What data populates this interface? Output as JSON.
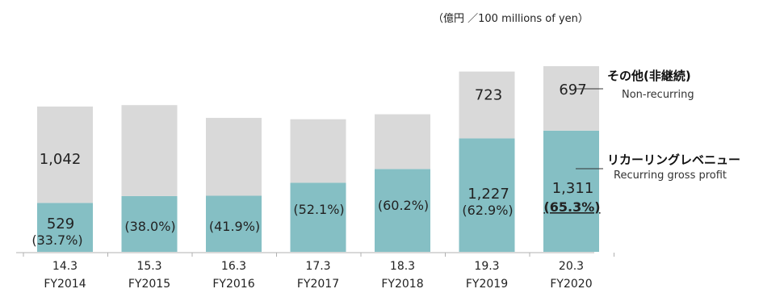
{
  "unit_note": "（億円 ／100 millions of yen）",
  "chart_data": {
    "type": "bar",
    "stacked": true,
    "categories": [
      "14.3",
      "15.3",
      "16.3",
      "17.3",
      "18.3",
      "19.3",
      "20.3"
    ],
    "categories_sub": [
      "FY2014",
      "FY2015",
      "FY2016",
      "FY2017",
      "FY2018",
      "FY2019",
      "FY2020"
    ],
    "series": [
      {
        "name": "リカーリングレベニュー",
        "name_en": "Recurring gross profit",
        "color": "#85bfc4",
        "values": [
          529,
          603,
          607,
          747,
          896,
          1227,
          1311
        ],
        "value_labels": [
          "529",
          "",
          "",
          "",
          "",
          "1,227",
          "1,311"
        ],
        "share_labels": [
          "(33.7%)",
          "(38.0%)",
          "(41.9%)",
          "(52.1%)",
          "(60.2%)",
          "(62.9%)",
          "(65.3%)"
        ]
      },
      {
        "name": "その他(非継続)",
        "name_en": "Non-recurring",
        "color": "#d9d9d9",
        "values": [
          1042,
          984,
          842,
          687,
          592,
          723,
          697
        ],
        "value_labels": [
          "1,042",
          "",
          "",
          "",
          "",
          "723",
          "697"
        ]
      }
    ],
    "ylim": [
      0,
      2200
    ],
    "grid": false,
    "legend": "right"
  }
}
